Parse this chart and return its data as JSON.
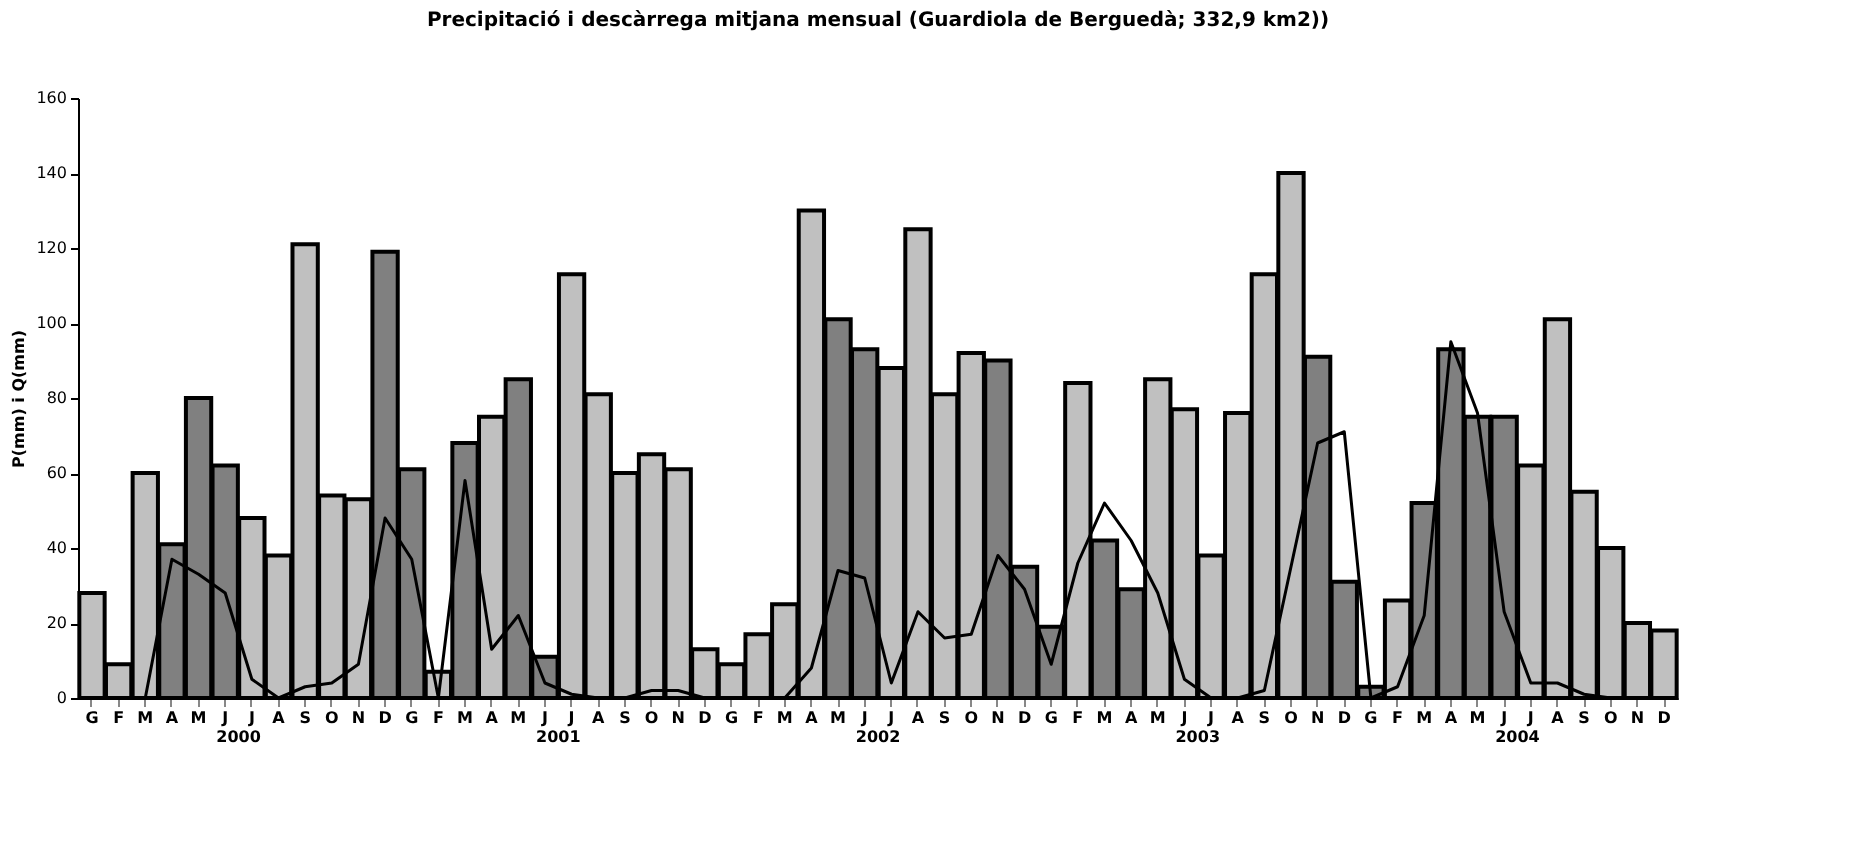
{
  "chart_data": {
    "type": "bar",
    "title": "Precipitació i descàrrega mitjana mensual (Guardiola de Berguedà; 332,9 km2))",
    "ylabel": "P(mm) i Q(mm)",
    "categories": [
      "G",
      "F",
      "M",
      "A",
      "M",
      "J",
      "J",
      "A",
      "S",
      "O",
      "N",
      "D",
      "G",
      "F",
      "M",
      "A",
      "M",
      "J",
      "J",
      "A",
      "S",
      "O",
      "N",
      "D",
      "G",
      "F",
      "M",
      "A",
      "M",
      "J",
      "J",
      "A",
      "S",
      "O",
      "N",
      "D",
      "G",
      "F",
      "M",
      "A",
      "M",
      "J",
      "J",
      "A",
      "S",
      "O",
      "N",
      "D",
      "G",
      "F",
      "M",
      "A",
      "M",
      "J",
      "J",
      "A",
      "S",
      "O",
      "N",
      "D"
    ],
    "annotations": [
      "2000",
      "2001",
      "2002",
      "2003",
      "2004"
    ],
    "series": [
      {
        "values": [
          28,
          9,
          60,
          41,
          80,
          62,
          48,
          38,
          121,
          54,
          53,
          119,
          61,
          7,
          68,
          75,
          85,
          11,
          113,
          81,
          60,
          65,
          61,
          13,
          9,
          17,
          25,
          130,
          101,
          93,
          88,
          125,
          81,
          92,
          90,
          35,
          19,
          84,
          42,
          29,
          85,
          77,
          38,
          76,
          113,
          140,
          91,
          31,
          3,
          26,
          52,
          93,
          75,
          75,
          62,
          101,
          55,
          40,
          20,
          18
        ],
        "colors": [
          "#c0c0c0",
          "#c0c0c0",
          "#c0c0c0",
          "#808080",
          "#808080",
          "#808080",
          "#c0c0c0",
          "#c0c0c0",
          "#c0c0c0",
          "#c0c0c0",
          "#c0c0c0",
          "#808080",
          "#808080",
          "#c0c0c0",
          "#808080",
          "#c0c0c0",
          "#808080",
          "#808080",
          "#c0c0c0",
          "#c0c0c0",
          "#c0c0c0",
          "#c0c0c0",
          "#c0c0c0",
          "#c0c0c0",
          "#c0c0c0",
          "#c0c0c0",
          "#c0c0c0",
          "#c0c0c0",
          "#808080",
          "#808080",
          "#c0c0c0",
          "#c0c0c0",
          "#c0c0c0",
          "#c0c0c0",
          "#808080",
          "#808080",
          "#808080",
          "#c0c0c0",
          "#808080",
          "#808080",
          "#c0c0c0",
          "#c0c0c0",
          "#c0c0c0",
          "#c0c0c0",
          "#c0c0c0",
          "#c0c0c0",
          "#808080",
          "#808080",
          "#808080",
          "#c0c0c0",
          "#808080",
          "#808080",
          "#808080",
          "#808080",
          "#c0c0c0",
          "#c0c0c0",
          "#c0c0c0",
          "#c0c0c0",
          "#c0c0c0",
          "#c0c0c0"
        ]
      },
      {
        "type": "line",
        "color": "#000000",
        "values": [
          0,
          0,
          0,
          37,
          33,
          28,
          5,
          0,
          3,
          4,
          9,
          48,
          37,
          0,
          58,
          13,
          22,
          4,
          1,
          0,
          0,
          2,
          2,
          0,
          0,
          0,
          0,
          8,
          34,
          32,
          4,
          23,
          16,
          17,
          38,
          29,
          9,
          36,
          52,
          42,
          28,
          5,
          0,
          0,
          2,
          35,
          68,
          71,
          0,
          3,
          22,
          95,
          76,
          23,
          4,
          4,
          1,
          0,
          0,
          0
        ]
      }
    ],
    "ylim": [
      0,
      160
    ],
    "yticks": [
      0,
      20,
      40,
      60,
      80,
      100,
      120,
      140,
      160
    ],
    "grid": false
  }
}
